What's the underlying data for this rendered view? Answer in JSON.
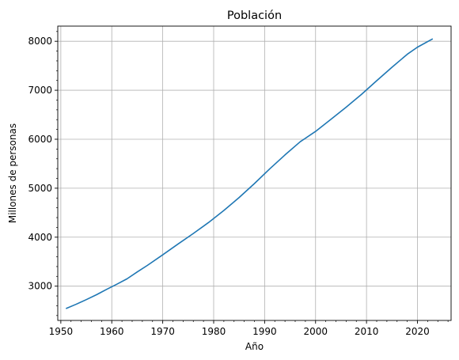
{
  "chart_data": {
    "type": "line",
    "title": "Población",
    "xlabel": "Año",
    "ylabel": "Millones de personas",
    "xlim": [
      1949.4,
      2026.6
    ],
    "ylim": [
      2300,
      8310
    ],
    "xticks": [
      1950,
      1960,
      1970,
      1980,
      1990,
      2000,
      2010,
      2020
    ],
    "yticks": [
      3000,
      4000,
      5000,
      6000,
      7000,
      8000
    ],
    "x_minor_step": 2,
    "y_minor_step": 200,
    "grid": true,
    "colors": {
      "line": "#1f77b4",
      "grid": "#b0b0b0",
      "axes": "#000000"
    },
    "series": [
      {
        "x": [
          1951,
          1953,
          1955,
          1957,
          1959,
          1961,
          1963,
          1965,
          1967,
          1970,
          1973,
          1976,
          1979,
          1982,
          1985,
          1988,
          1991,
          1994,
          1997,
          2000,
          2003,
          2006,
          2009,
          2012,
          2015,
          2018,
          2020,
          2023
        ],
        "values": [
          2543,
          2630,
          2725,
          2825,
          2935,
          3040,
          3150,
          3290,
          3425,
          3640,
          3860,
          4075,
          4300,
          4545,
          4810,
          5095,
          5395,
          5680,
          5950,
          6160,
          6405,
          6655,
          6915,
          7195,
          7470,
          7735,
          7880,
          8050
        ]
      }
    ]
  }
}
